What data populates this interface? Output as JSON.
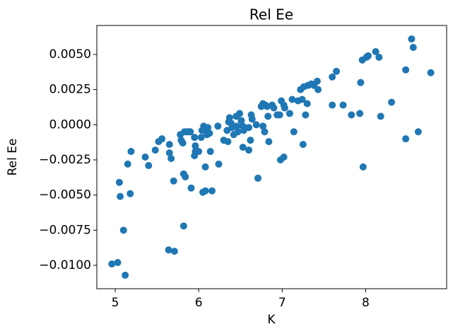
{
  "chart_data": {
    "type": "scatter",
    "title": "Rel Ee",
    "x_label": "K",
    "y_label": "Rel Ee",
    "color": "#1f77b4",
    "xlim": [
      4.78,
      8.97
    ],
    "ylim": [
      -0.01166,
      0.00706
    ],
    "xticks": [
      5,
      6,
      7,
      8
    ],
    "yticks": [
      {
        "value": -0.01,
        "label": "−0.0100"
      },
      {
        "value": -0.0075,
        "label": "−0.0075"
      },
      {
        "value": -0.005,
        "label": "−0.0050"
      },
      {
        "value": -0.0025,
        "label": "−0.0025"
      },
      {
        "value": 0,
        "label": "0.0000"
      },
      {
        "value": 0.0025,
        "label": "0.0025"
      },
      {
        "value": 0.005,
        "label": "0.0050"
      }
    ],
    "x": [
      4.96,
      5.03,
      5.12,
      5.1,
      5.05,
      5.06,
      5.18,
      5.15,
      5.19,
      5.36,
      5.4,
      5.48,
      5.52,
      5.56,
      5.65,
      5.65,
      5.67,
      5.64,
      5.71,
      5.7,
      5.78,
      5.79,
      5.81,
      5.83,
      5.86,
      5.88,
      5.9,
      5.82,
      5.84,
      5.82,
      5.91,
      5.95,
      5.96,
      5.96,
      5.95,
      6.0,
      6.03,
      6.04,
      6.06,
      6.08,
      6.11,
      6.1,
      6.13,
      6.08,
      6.05,
      6.08,
      6.14,
      6.16,
      6.23,
      6.24,
      6.3,
      6.34,
      6.35,
      6.36,
      6.37,
      6.39,
      6.4,
      6.42,
      6.45,
      6.46,
      6.47,
      6.49,
      6.51,
      6.53,
      6.54,
      6.53,
      6.6,
      6.63,
      6.64,
      6.6,
      6.62,
      6.69,
      6.71,
      6.75,
      6.77,
      6.8,
      6.82,
      6.79,
      6.77,
      6.83,
      6.84,
      6.88,
      6.9,
      6.94,
      6.97,
      6.99,
      7.02,
      7.03,
      6.98,
      7.02,
      7.09,
      7.12,
      7.14,
      7.19,
      7.22,
      7.24,
      7.25,
      7.26,
      7.28,
      7.3,
      7.31,
      7.35,
      7.38,
      7.42,
      7.43,
      7.6,
      7.6,
      7.65,
      7.73,
      7.83,
      7.93,
      7.94,
      7.96,
      7.97,
      8.01,
      8.03,
      8.12,
      8.16,
      8.18,
      8.31,
      8.48,
      8.48,
      8.55,
      8.57,
      8.63,
      8.78
    ],
    "values": [
      -0.0099,
      -0.0098,
      -0.0107,
      -0.0075,
      -0.0041,
      -0.0051,
      -0.0049,
      -0.0028,
      -0.0019,
      -0.0023,
      -0.0029,
      -0.0018,
      -0.0012,
      -0.001,
      -0.0014,
      -0.002,
      -0.0024,
      -0.0089,
      -0.009,
      -0.004,
      -0.0007,
      -0.0011,
      -0.0013,
      -0.0005,
      -0.0005,
      -0.0005,
      -0.0005,
      -0.0035,
      -0.0037,
      -0.0072,
      -0.0045,
      -0.0009,
      -0.0015,
      -0.0019,
      -0.0022,
      -0.0019,
      -0.0009,
      -0.0004,
      -0.0001,
      -0.0003,
      -0.0002,
      -0.0007,
      -0.0006,
      -0.003,
      -0.0048,
      -0.0047,
      -0.0019,
      -0.0047,
      -0.0001,
      -0.0028,
      -0.0011,
      -0.0004,
      -0.0012,
      0.0002,
      0.0005,
      0.0001,
      -0.0002,
      -0.0007,
      0.0006,
      -0.0001,
      -0.0005,
      0.0008,
      0.0003,
      -0.0001,
      -0.0004,
      -0.0016,
      -0.0002,
      0.0007,
      0.0004,
      -0.0018,
      -0.0011,
      0.0,
      -0.0038,
      0.0013,
      0.0015,
      0.0014,
      0.0013,
      -0.0005,
      -0.0001,
      0.0006,
      -0.0012,
      0.0014,
      0.0012,
      0.0007,
      0.0007,
      0.0017,
      0.0014,
      0.0012,
      -0.0025,
      -0.0023,
      0.0008,
      0.0018,
      -0.0005,
      0.0017,
      0.0025,
      0.0018,
      -0.0014,
      0.0027,
      0.0007,
      0.0015,
      0.0028,
      0.0029,
      0.0028,
      0.0031,
      0.0025,
      0.0014,
      0.0034,
      0.0038,
      0.0014,
      0.0007,
      0.0008,
      0.003,
      0.0046,
      -0.003,
      0.0048,
      0.0049,
      0.0052,
      0.0048,
      0.0006,
      0.0016,
      -0.001,
      0.0039,
      0.0061,
      0.0055,
      -0.0005,
      0.0037
    ]
  }
}
